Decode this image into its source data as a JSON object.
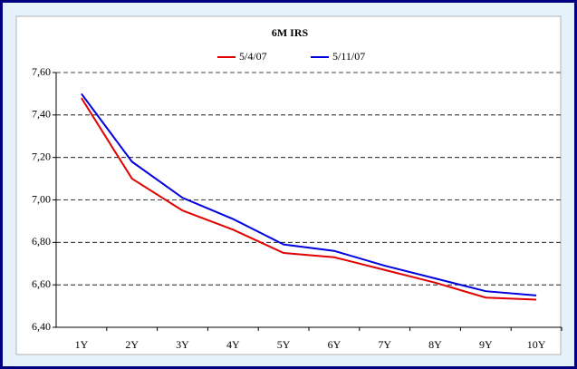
{
  "chart_data": {
    "type": "line",
    "title": "6M IRS",
    "categories": [
      "1Y",
      "2Y",
      "3Y",
      "4Y",
      "5Y",
      "6Y",
      "7Y",
      "8Y",
      "9Y",
      "10Y"
    ],
    "series": [
      {
        "name": "5/4/07",
        "color": "#e00000",
        "values": [
          7.48,
          7.1,
          6.95,
          6.86,
          6.75,
          6.73,
          6.67,
          6.61,
          6.54,
          6.53
        ]
      },
      {
        "name": "5/11/07",
        "color": "#0000e0",
        "values": [
          7.5,
          7.18,
          7.01,
          6.91,
          6.79,
          6.76,
          6.69,
          6.63,
          6.57,
          6.55
        ]
      }
    ],
    "ylim": [
      6.4,
      7.6
    ],
    "yticks": [
      {
        "value": 6.4,
        "label": "6,40"
      },
      {
        "value": 6.6,
        "label": "6,60"
      },
      {
        "value": 6.8,
        "label": "6,80"
      },
      {
        "value": 7.0,
        "label": "7,00"
      },
      {
        "value": 7.2,
        "label": "7,20"
      },
      {
        "value": 7.4,
        "label": "7,40"
      },
      {
        "value": 7.6,
        "label": "7,60"
      }
    ],
    "grid": true,
    "legend": "top"
  }
}
